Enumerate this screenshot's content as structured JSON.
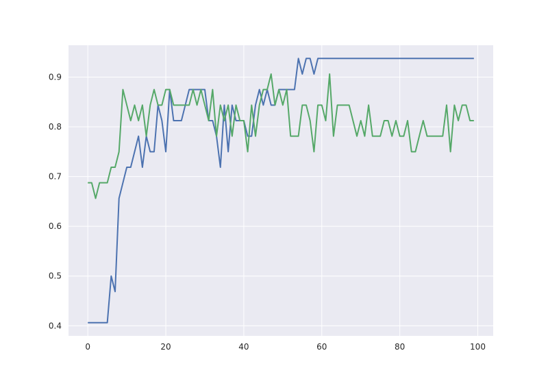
{
  "chart_data": {
    "type": "line",
    "x": [
      0,
      1,
      2,
      3,
      4,
      5,
      6,
      7,
      8,
      9,
      10,
      11,
      12,
      13,
      14,
      15,
      16,
      17,
      18,
      19,
      20,
      21,
      22,
      23,
      24,
      25,
      26,
      27,
      28,
      29,
      30,
      31,
      32,
      33,
      34,
      35,
      36,
      37,
      38,
      39,
      40,
      41,
      42,
      43,
      44,
      45,
      46,
      47,
      48,
      49,
      50,
      51,
      52,
      53,
      54,
      55,
      56,
      57,
      58,
      59,
      60,
      61,
      62,
      63,
      64,
      65,
      66,
      67,
      68,
      69,
      70,
      71,
      72,
      73,
      74,
      75,
      76,
      77,
      78,
      79,
      80,
      81,
      82,
      83,
      84,
      85,
      86,
      87,
      88,
      89,
      90,
      91,
      92,
      93,
      94,
      95,
      96,
      97,
      98,
      99
    ],
    "series": [
      {
        "color": "#4c72b0",
        "values": [
          0.40625,
          0.40625,
          0.40625,
          0.40625,
          0.40625,
          0.40625,
          0.5,
          0.46875,
          0.65625,
          0.6875,
          0.71875,
          0.71875,
          0.75,
          0.78125,
          0.71875,
          0.78125,
          0.75,
          0.75,
          0.84375,
          0.8125,
          0.75,
          0.875,
          0.8125,
          0.8125,
          0.8125,
          0.84375,
          0.875,
          0.875,
          0.875,
          0.875,
          0.875,
          0.8125,
          0.8125,
          0.78125,
          0.71875,
          0.84375,
          0.75,
          0.84375,
          0.8125,
          0.8125,
          0.8125,
          0.78125,
          0.78125,
          0.84375,
          0.875,
          0.84375,
          0.875,
          0.84375,
          0.84375,
          0.875,
          0.875,
          0.875,
          0.875,
          0.875,
          0.9375,
          0.90625,
          0.9375,
          0.9375,
          0.90625,
          0.9375,
          0.9375,
          0.9375,
          0.9375,
          0.9375,
          0.9375,
          0.9375,
          0.9375,
          0.9375,
          0.9375,
          0.9375,
          0.9375,
          0.9375,
          0.9375,
          0.9375,
          0.9375,
          0.9375,
          0.9375,
          0.9375,
          0.9375,
          0.9375,
          0.9375,
          0.9375,
          0.9375,
          0.9375,
          0.9375,
          0.9375,
          0.9375,
          0.9375,
          0.9375,
          0.9375,
          0.9375,
          0.9375,
          0.9375,
          0.9375,
          0.9375,
          0.9375,
          0.9375,
          0.9375,
          0.9375,
          0.9375
        ]
      },
      {
        "color": "#55a868",
        "values": [
          0.6875,
          0.6875,
          0.65625,
          0.6875,
          0.6875,
          0.6875,
          0.71875,
          0.71875,
          0.75,
          0.875,
          0.84375,
          0.8125,
          0.84375,
          0.8125,
          0.84375,
          0.78125,
          0.84375,
          0.875,
          0.84375,
          0.84375,
          0.875,
          0.875,
          0.84375,
          0.84375,
          0.84375,
          0.84375,
          0.84375,
          0.875,
          0.84375,
          0.875,
          0.84375,
          0.8125,
          0.875,
          0.78125,
          0.84375,
          0.8125,
          0.84375,
          0.78125,
          0.84375,
          0.8125,
          0.8125,
          0.75,
          0.84375,
          0.78125,
          0.84375,
          0.875,
          0.875,
          0.90625,
          0.84375,
          0.875,
          0.84375,
          0.875,
          0.78125,
          0.78125,
          0.78125,
          0.84375,
          0.84375,
          0.8125,
          0.75,
          0.84375,
          0.84375,
          0.8125,
          0.90625,
          0.78125,
          0.84375,
          0.84375,
          0.84375,
          0.84375,
          0.8125,
          0.78125,
          0.8125,
          0.78125,
          0.84375,
          0.78125,
          0.78125,
          0.78125,
          0.8125,
          0.8125,
          0.78125,
          0.8125,
          0.78125,
          0.78125,
          0.8125,
          0.75,
          0.75,
          0.78125,
          0.8125,
          0.78125,
          0.78125,
          0.78125,
          0.78125,
          0.78125,
          0.84375,
          0.75,
          0.84375,
          0.8125,
          0.84375,
          0.84375,
          0.8125,
          0.8125
        ]
      }
    ],
    "xlim": [
      -4.95,
      103.95
    ],
    "xticks": [
      0,
      20,
      40,
      60,
      80,
      100
    ],
    "ylim": [
      0.3797,
      0.9641
    ],
    "yticks": [
      0.4,
      0.5,
      0.6,
      0.7,
      0.8,
      0.9
    ],
    "grid": true,
    "background": "#eaeaf2"
  }
}
